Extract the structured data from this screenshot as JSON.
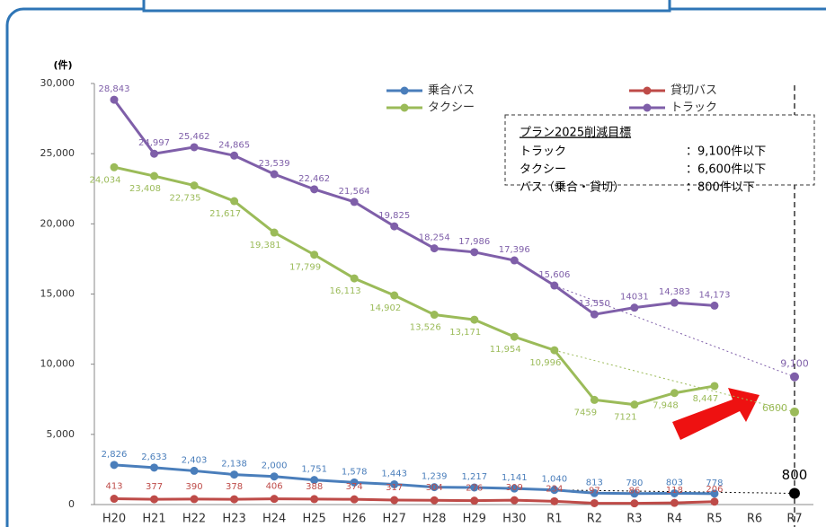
{
  "chart_data": {
    "type": "line",
    "y_unit": "(件)",
    "categories": [
      "H20",
      "H21",
      "H22",
      "H23",
      "H24",
      "H25",
      "H26",
      "H27",
      "H28",
      "H29",
      "H30",
      "R1",
      "R2",
      "R3",
      "R4",
      "R5",
      "R6",
      "R7"
    ],
    "ylim": [
      0,
      30000
    ],
    "yticks": [
      0,
      {
        "value": 5000,
        "label": "5,000"
      },
      {
        "value": 10000,
        "label": "10,000"
      },
      {
        "value": 15000,
        "label": "15,000"
      },
      {
        "value": 20000,
        "label": "20,000"
      },
      {
        "value": 25000,
        "label": "25,000"
      },
      {
        "value": 30000,
        "label": "30,000"
      }
    ],
    "series": [
      {
        "name": "乗合バス",
        "color": "#4a7ebb",
        "values": [
          2826,
          2633,
          2403,
          2138,
          2000,
          1751,
          1578,
          1443,
          1239,
          1217,
          1141,
          1040,
          813,
          780,
          803,
          778,
          null,
          null
        ],
        "value_labels": [
          "2,826",
          "2,633",
          "2,403",
          "2,138",
          "2,000",
          "1,751",
          "1,578",
          "1,443",
          "1,239",
          "1,217",
          "1,141",
          "1,040",
          "813",
          "780",
          "803",
          "778",
          null,
          null
        ]
      },
      {
        "name": "貸切バス",
        "color": "#be4b48",
        "values": [
          413,
          377,
          390,
          378,
          406,
          388,
          374,
          317,
          304,
          276,
          309,
          234,
          97,
          86,
          118,
          206,
          null,
          null
        ],
        "value_labels": [
          "413",
          "377",
          "390",
          "378",
          "406",
          "388",
          "374",
          "317",
          "304",
          "276",
          "309",
          "234",
          "97",
          "86",
          "118",
          "206",
          null,
          null
        ]
      },
      {
        "name": "タクシー",
        "color": "#9bbb59",
        "values": [
          24034,
          23408,
          22735,
          21617,
          19381,
          17799,
          16113,
          14902,
          13526,
          13171,
          11954,
          10996,
          7459,
          7121,
          7948,
          8447,
          null,
          null
        ],
        "value_labels": [
          "24,034",
          "23,408",
          "22,735",
          "21,617",
          "19,381",
          "17,799",
          "16,113",
          "14,902",
          "13,526",
          "13,171",
          "11,954",
          "10,996",
          "7459",
          "7121",
          "7,948",
          "8,447",
          null,
          null
        ]
      },
      {
        "name": "トラック",
        "color": "#7f5fa9",
        "values": [
          28843,
          24997,
          25462,
          24865,
          23539,
          22462,
          21564,
          19825,
          18254,
          17986,
          17396,
          15606,
          13550,
          14031,
          14383,
          14173,
          null,
          null
        ],
        "value_labels": [
          "28,843",
          "24,997",
          "25,462",
          "24,865",
          "23,539",
          "22,462",
          "21,564",
          "19,825",
          "18,254",
          "17,986",
          "17,396",
          "15,606",
          "13,550",
          "14031",
          "14,383",
          "14,173",
          null,
          null
        ]
      }
    ],
    "targets": [
      {
        "value": 9100,
        "label": "9,100",
        "color": "#7f5fa9"
      },
      {
        "value": 6600,
        "label": "6600",
        "color": "#9bbb59"
      },
      {
        "value": 800,
        "label": "800",
        "color": "#000000"
      }
    ],
    "annotation": {
      "title": "プラン2025削減目標",
      "rows": [
        [
          "トラック",
          "：9,100件以下"
        ],
        [
          "タクシー",
          "：6,600件以下"
        ],
        [
          "バス（乗合・貸切）",
          "：800件以下"
        ]
      ]
    }
  }
}
